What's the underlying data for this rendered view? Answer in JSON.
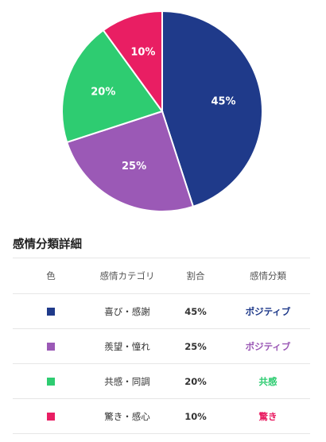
{
  "chart_data": {
    "type": "pie",
    "categories": [
      "喜び・感謝",
      "羨望・憧れ",
      "共感・同調",
      "驚き・感心"
    ],
    "values": [
      45,
      25,
      20,
      10
    ],
    "value_labels": [
      "45%",
      "25%",
      "20%",
      "10%"
    ],
    "colors": [
      "#1f3a8a",
      "#9b59b6",
      "#2ecc71",
      "#e91e63"
    ],
    "start_angle_deg": 0,
    "direction": "clockwise",
    "legend": "none"
  },
  "table": {
    "title": "感情分類詳細",
    "headers": [
      "色",
      "感情カテゴリ",
      "割合",
      "感情分類"
    ],
    "rows": [
      {
        "color": "#1f3a8a",
        "category": "喜び・感謝",
        "percent": "45%",
        "classification": "ポジティブ",
        "classification_color": "#1f3a8a"
      },
      {
        "color": "#9b59b6",
        "category": "羨望・憧れ",
        "percent": "25%",
        "classification": "ポジティブ",
        "classification_color": "#9b59b6"
      },
      {
        "color": "#2ecc71",
        "category": "共感・同調",
        "percent": "20%",
        "classification": "共感",
        "classification_color": "#2ecc71"
      },
      {
        "color": "#e91e63",
        "category": "驚き・感心",
        "percent": "10%",
        "classification": "驚き",
        "classification_color": "#e91e63"
      }
    ]
  }
}
